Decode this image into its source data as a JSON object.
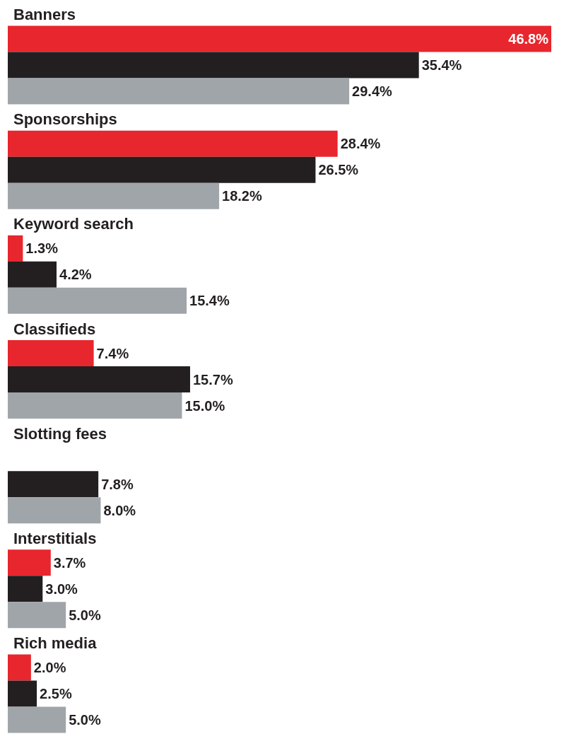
{
  "chart_data": {
    "type": "bar",
    "orientation": "horizontal",
    "categories": [
      "Banners",
      "Sponsorships",
      "Keyword search",
      "Classifieds",
      "Slotting fees",
      "Interstitials",
      "Rich media"
    ],
    "series": [
      {
        "color": "#e8262d",
        "values": [
          46.8,
          28.4,
          1.3,
          7.4,
          null,
          3.7,
          2.0
        ],
        "value_labels": [
          "46.8%",
          "28.4%",
          "1.3%",
          "7.4%",
          null,
          "3.7%",
          "2.0%"
        ]
      },
      {
        "color": "#231f20",
        "values": [
          35.4,
          26.5,
          4.2,
          15.7,
          7.8,
          3.0,
          2.5
        ],
        "value_labels": [
          "35.4%",
          "26.5%",
          "4.2%",
          "15.7%",
          "7.8%",
          "3.0%",
          "2.5%"
        ]
      },
      {
        "color": "#a0a5aa",
        "values": [
          29.4,
          18.2,
          15.4,
          15.0,
          8.0,
          5.0,
          5.0
        ],
        "value_labels": [
          "29.4%",
          "18.2%",
          "15.4%",
          "15.0%",
          "8.0%",
          "5.0%",
          "5.0%"
        ]
      }
    ]
  }
}
